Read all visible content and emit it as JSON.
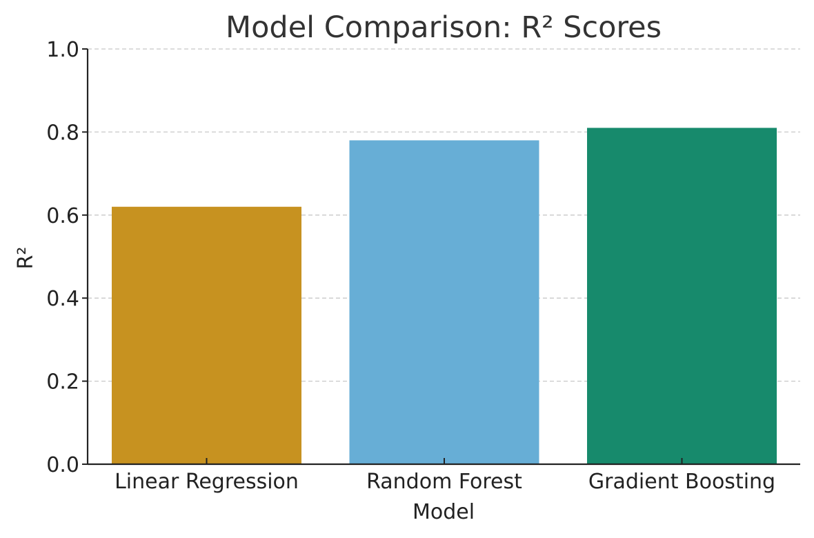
{
  "chart_data": {
    "type": "bar",
    "title": "Model Comparison: R² Scores",
    "xlabel": "Model",
    "ylabel": "R²",
    "categories": [
      "Linear Regression",
      "Random Forest",
      "Gradient Boosting"
    ],
    "values": [
      0.62,
      0.78,
      0.81
    ],
    "colors": [
      "#c79220",
      "#67aed6",
      "#178a6c"
    ],
    "ylim": [
      0,
      1.0
    ],
    "yticks": [
      "0.0",
      "0.2",
      "0.4",
      "0.6",
      "0.8",
      "1.0"
    ],
    "grid": "horizontal, dashed",
    "legend": "none"
  }
}
